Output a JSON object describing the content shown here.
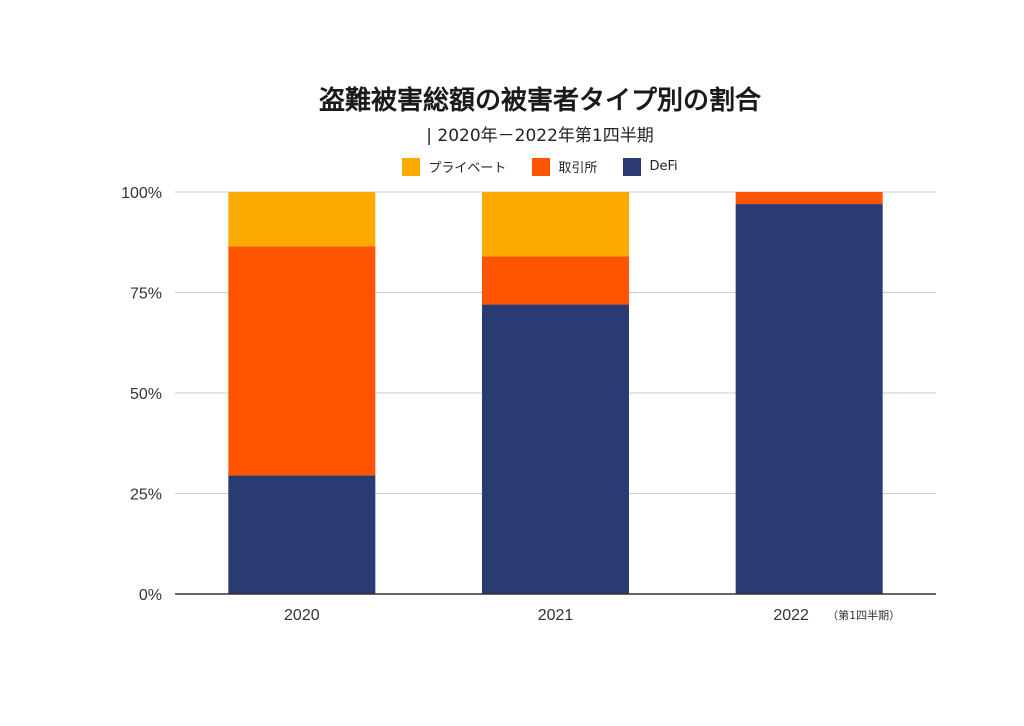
{
  "chart_data": {
    "type": "bar",
    "stacked": true,
    "title": "盗難被害総額の被害者タイプ別の割合",
    "subtitle": "| 2020年－2022年第1四半期",
    "categories": [
      "2020",
      "2021",
      "2022"
    ],
    "category_notes": [
      "",
      "",
      "（第1四半期）"
    ],
    "series": [
      {
        "name": "DeFi",
        "color": "#2a3a72",
        "values": [
          29.5,
          72,
          97
        ]
      },
      {
        "name": "取引所",
        "color": "#ff5500",
        "values": [
          57,
          12,
          3
        ]
      },
      {
        "name": "プライベート",
        "color": "#fbab00",
        "values": [
          13.5,
          16,
          0
        ]
      }
    ],
    "legend_order": [
      "プライベート",
      "取引所",
      "DeFi"
    ],
    "legend_colors": [
      "#fbab00",
      "#ff5500",
      "#2a3a72"
    ],
    "yticks": [
      "0%",
      "25%",
      "50%",
      "75%",
      "100%"
    ],
    "ytick_values": [
      0,
      25,
      50,
      75,
      100
    ],
    "ylim": [
      0,
      100
    ],
    "xlabel": "",
    "ylabel": "",
    "grid": true,
    "legend_position": "top"
  }
}
